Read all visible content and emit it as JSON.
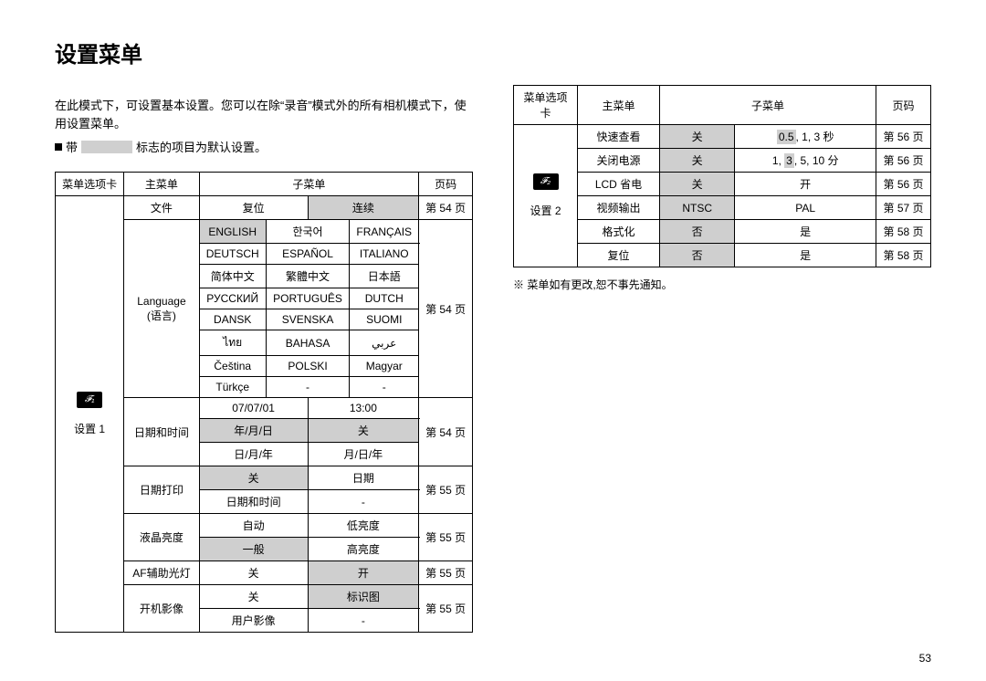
{
  "title": "设置菜单",
  "intro": "在此模式下，可设置基本设置。您可以在除“录音”模式外的所有相机模式下，使用设置菜单。",
  "legend_prefix": "带",
  "legend_suffix": "标志的项目为默认设置。",
  "page_number": "53",
  "note": "※ 菜单如有更改,恕不事先通知。",
  "headers": {
    "tab": "菜单选项卡",
    "main": "主菜单",
    "sub": "子菜单",
    "page": "页码"
  },
  "t1_tab_label": "设置 1",
  "t1_tab_icon": "𝓕₁",
  "t1": {
    "file_main": "文件",
    "file_sub1": "复位",
    "file_sub2": "连续",
    "file_page": "第 54 页",
    "lang_main1": "Language",
    "lang_main2": "(语言)",
    "lang_page": "第 54 页",
    "lang_grid": [
      [
        "ENGLISH",
        "한국어",
        "FRANÇAIS"
      ],
      [
        "DEUTSCH",
        "ESPAÑOL",
        "ITALIANO"
      ],
      [
        "简体中文",
        "繁體中文",
        "日本語"
      ],
      [
        "РУССКИЙ",
        "PORTUGUÊS",
        "DUTCH"
      ],
      [
        "DANSK",
        "SVENSKA",
        "SUOMI"
      ],
      [
        "ไทย",
        "BAHASA",
        "عربي"
      ],
      [
        "Čeština",
        "POLSKI",
        "Magyar"
      ],
      [
        "Türkçe",
        "-",
        "-"
      ]
    ],
    "dt_main": "日期和时间",
    "dt_page": "第 54 页",
    "dt_r1c1": "07/07/01",
    "dt_r1c2": "13:00",
    "dt_r2c1": "年/月/日",
    "dt_r2c2": "关",
    "dt_r3c1": "日/月/年",
    "dt_r3c2": "月/日/年",
    "ip_main": "日期打印",
    "ip_page": "第 55 页",
    "ip_r1c1": "关",
    "ip_r1c2": "日期",
    "ip_r2c1": "日期和时间",
    "ip_r2c2": "-",
    "lb_main": "液晶亮度",
    "lb_page": "第 55 页",
    "lb_r1c1": "自动",
    "lb_r1c2": "低亮度",
    "lb_r2c1": "一般",
    "lb_r2c2": "高亮度",
    "af_main": "AF辅助光灯",
    "af_page": "第 55 页",
    "af_c1": "关",
    "af_c2": "开",
    "si_main": "开机影像",
    "si_page": "第 55 页",
    "si_r1c1": "关",
    "si_r1c2": "标识图",
    "si_r2c1": "用户影像",
    "si_r2c2": "-"
  },
  "t2_tab_label": "设置 2",
  "t2_tab_icon": "𝓕₂",
  "t2_rows": [
    {
      "m": "快速查看",
      "s1": "关",
      "s2": "0.5, 1, 3 秒",
      "p": "第 56 页",
      "hl1": true,
      "hlpart": "0.5"
    },
    {
      "m": "关闭电源",
      "s1": "关",
      "s2": "1, 3, 5, 10 分",
      "p": "第 56 页",
      "hl1": true,
      "hlpart": "3"
    },
    {
      "m": "LCD 省电",
      "s1": "关",
      "s2": "开",
      "p": "第 56 页",
      "hl1": true
    },
    {
      "m": "视频输出",
      "s1": "NTSC",
      "s2": "PAL",
      "p": "第 57 页",
      "hl1": true
    },
    {
      "m": "格式化",
      "s1": "否",
      "s2": "是",
      "p": "第 58 页",
      "hl1": true
    },
    {
      "m": "复位",
      "s1": "否",
      "s2": "是",
      "p": "第 58 页",
      "hl1": true
    }
  ]
}
